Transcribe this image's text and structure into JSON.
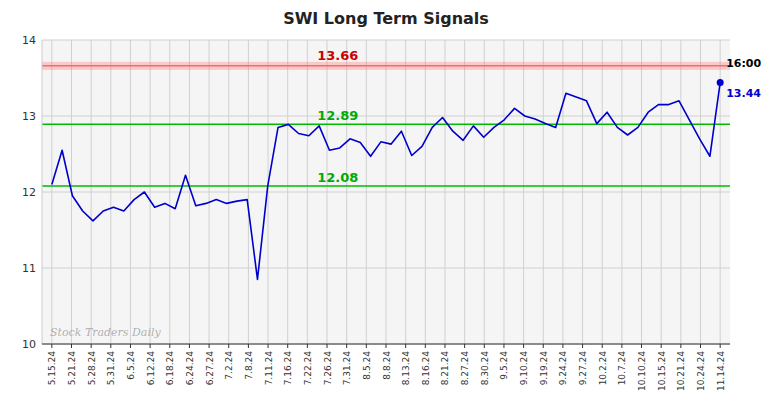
{
  "chart_data": {
    "type": "line",
    "title": "SWI Long Term Signals",
    "watermark": "Stock Traders Daily",
    "annotation": "16:00",
    "background": "#f5f5f5",
    "grid": true,
    "x": [
      0,
      0.5231,
      1.0462,
      1.5692,
      2.0923,
      2.6154,
      3.1385,
      3.6615,
      4.1846,
      4.7077,
      5.2308,
      5.7538,
      6.2769,
      6.8,
      7.3231,
      7.8462,
      8.3692,
      8.8923,
      9.4154,
      9.9385,
      10.4615,
      10.9846,
      11.5077,
      12.0308,
      12.5538,
      13.0769,
      13.6,
      14.1231,
      14.6462,
      15.1692,
      15.6923,
      16.2154,
      16.7385,
      17.2615,
      17.7846,
      18.3077,
      18.8308,
      19.3538,
      19.8769,
      20.4,
      20.9231,
      21.4462,
      21.9692,
      22.4923,
      23.0154,
      23.5385,
      24.0615,
      24.5846,
      25.1077,
      25.6308,
      26.1538,
      26.6769,
      27.2,
      27.7231,
      28.2462,
      28.7692,
      29.2923,
      29.8154,
      30.3385,
      30.8615,
      31.3846,
      31.9077,
      32.4308,
      32.9538,
      33.4769,
      34
    ],
    "series": [
      {
        "color": "#0000cc",
        "values": [
          12.1,
          12.55,
          11.95,
          11.75,
          11.62,
          11.75,
          11.8,
          11.75,
          11.9,
          12.0,
          11.8,
          11.85,
          11.78,
          12.22,
          11.82,
          11.85,
          11.9,
          11.85,
          11.88,
          11.9,
          10.85,
          12.08,
          12.85,
          12.89,
          12.77,
          12.74,
          12.87,
          12.55,
          12.58,
          12.7,
          12.65,
          12.47,
          12.66,
          12.63,
          12.8,
          12.48,
          12.6,
          12.85,
          12.98,
          12.8,
          12.68,
          12.87,
          12.72,
          12.85,
          12.95,
          13.1,
          13.0,
          12.96,
          12.9,
          12.85,
          13.3,
          13.25,
          13.2,
          12.9,
          13.05,
          12.85,
          12.75,
          12.85,
          13.05,
          13.15,
          13.15,
          13.2,
          12.95,
          12.7,
          12.47,
          13.44
        ]
      }
    ],
    "hlines": [
      {
        "value": 13.66,
        "color": "#ff6666",
        "label_color": "#cc0000"
      },
      {
        "value": 12.89,
        "color": "#00bb00",
        "label_color": "#00aa00"
      },
      {
        "value": 12.08,
        "color": "#00bb00",
        "label_color": "#00aa00"
      }
    ],
    "xlim": [
      -0.5,
      34.5
    ],
    "xticks": [
      {
        "value": 0,
        "label": "5.15.24"
      },
      {
        "value": 1,
        "label": "5.21.24"
      },
      {
        "value": 2,
        "label": "5.28.24"
      },
      {
        "value": 3,
        "label": "5.31.24"
      },
      {
        "value": 4,
        "label": "6.5.24"
      },
      {
        "value": 5,
        "label": "6.12.24"
      },
      {
        "value": 6,
        "label": "6.18.24"
      },
      {
        "value": 7,
        "label": "6.24.24"
      },
      {
        "value": 8,
        "label": "6.27.24"
      },
      {
        "value": 9,
        "label": "7.2.24"
      },
      {
        "value": 10,
        "label": "7.8.24"
      },
      {
        "value": 11,
        "label": "7.11.24"
      },
      {
        "value": 12,
        "label": "7.16.24"
      },
      {
        "value": 13,
        "label": "7.22.24"
      },
      {
        "value": 14,
        "label": "7.26.24"
      },
      {
        "value": 15,
        "label": "7.31.24"
      },
      {
        "value": 16,
        "label": "8.5.24"
      },
      {
        "value": 17,
        "label": "8.8.24"
      },
      {
        "value": 18,
        "label": "8.13.24"
      },
      {
        "value": 19,
        "label": "8.16.24"
      },
      {
        "value": 20,
        "label": "8.21.24"
      },
      {
        "value": 21,
        "label": "8.27.24"
      },
      {
        "value": 22,
        "label": "8.30.24"
      },
      {
        "value": 23,
        "label": "9.5.24"
      },
      {
        "value": 24,
        "label": "9.10.24"
      },
      {
        "value": 25,
        "label": "9.19.24"
      },
      {
        "value": 26,
        "label": "9.24.24"
      },
      {
        "value": 27,
        "label": "9.27.24"
      },
      {
        "value": 28,
        "label": "10.2.24"
      },
      {
        "value": 29,
        "label": "10.7.24"
      },
      {
        "value": 30,
        "label": "10.10.24"
      },
      {
        "value": 31,
        "label": "10.15.24"
      },
      {
        "value": 32,
        "label": "10.21.24"
      },
      {
        "value": 33,
        "label": "10.24.24"
      },
      {
        "value": 34,
        "label": "11.14.24"
      }
    ],
    "ylim": [
      10,
      14
    ],
    "yticks": [
      10,
      11,
      12,
      13,
      14
    ]
  }
}
